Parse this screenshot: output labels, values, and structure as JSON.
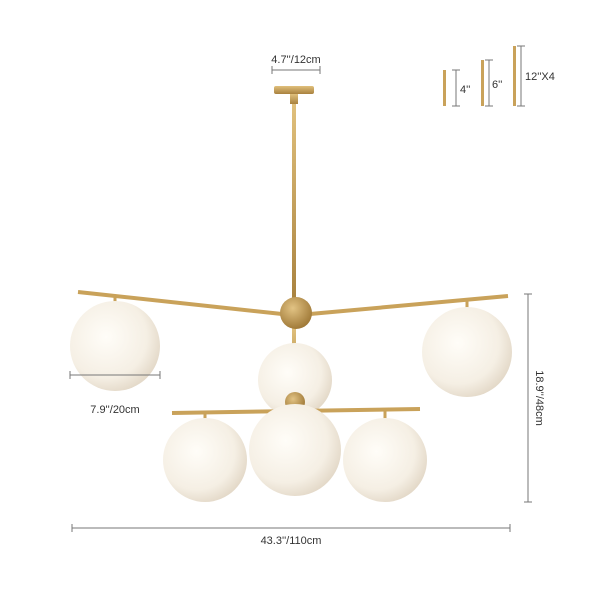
{
  "dimensions": {
    "canopy_width": "4.7''/12cm",
    "globe_diameter": "7.9''/20cm",
    "height": "18.9''/48cm",
    "width": "43.3''/110cm"
  },
  "rods": {
    "rod_4": "4''",
    "rod_6": "6''",
    "rod_12": "12''X4"
  },
  "colors": {
    "brass": "#c9a25a",
    "glass": "#f7f3ec",
    "dimension_line": "#777777"
  }
}
